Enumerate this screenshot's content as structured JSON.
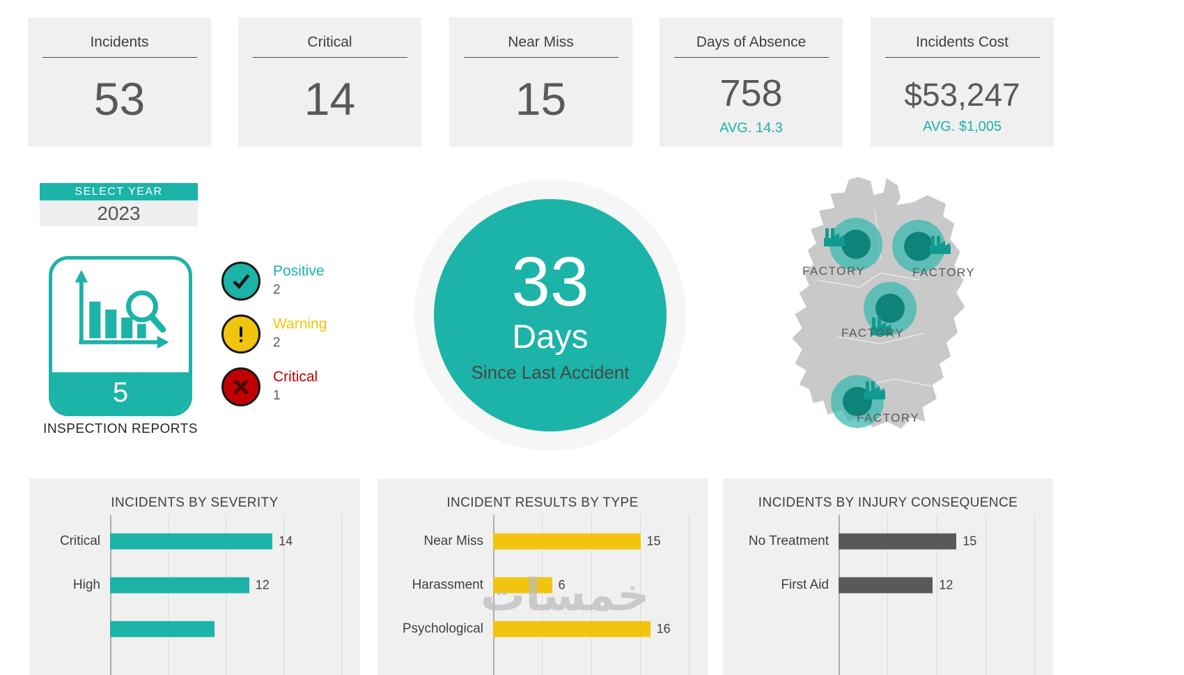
{
  "colors": {
    "teal": "#1CB3A8",
    "yellow": "#F1C40F",
    "red": "#C00000",
    "dark_gray": "#595959",
    "map_gray": "#C9C9C9"
  },
  "kpi_cards": [
    {
      "title": "Incidents",
      "value": "53",
      "avg": ""
    },
    {
      "title": "Critical",
      "value": "14",
      "avg": ""
    },
    {
      "title": "Near Miss",
      "value": "15",
      "avg": ""
    },
    {
      "title": "Days of Absence",
      "value": "758",
      "avg": "AVG. 14.3"
    },
    {
      "title": "Incidents Cost",
      "value": "$53,247",
      "avg": "AVG. $1,005"
    }
  ],
  "year_selector": {
    "label": "SELECT YEAR",
    "value": "2023"
  },
  "inspection_reports": {
    "count": "5",
    "caption": "INSPECTION REPORTS"
  },
  "status_legend": {
    "items": [
      {
        "name": "Positive",
        "count": "2",
        "color": "#1CB3A8"
      },
      {
        "name": "Warning",
        "count": "2",
        "color": "#F1C40F"
      },
      {
        "name": "Critical",
        "count": "1",
        "color": "#C00000"
      }
    ]
  },
  "accident_counter": {
    "value": "33",
    "unit": "Days",
    "caption": "Since Last Accident"
  },
  "factory_map": {
    "markers": [
      {
        "label": "FACTORY"
      },
      {
        "label": "FACTORY"
      },
      {
        "label": "FACTORY"
      },
      {
        "label": "FACTORY"
      }
    ]
  },
  "watermark": "خمسات",
  "chart_data": [
    {
      "type": "bar",
      "orientation": "horizontal",
      "title": "INCIDENTS BY SEVERITY",
      "color": "#1CB3A8",
      "axis_max": 20,
      "grid": true,
      "rows": [
        {
          "label": "Critical",
          "value": 14
        },
        {
          "label": "High",
          "value": 12
        },
        {
          "label": "",
          "value": 9,
          "value_visible": false
        }
      ]
    },
    {
      "type": "bar",
      "orientation": "horizontal",
      "title": "INCIDENT RESULTS BY TYPE",
      "color": "#F1C40F",
      "axis_max": 20,
      "grid": true,
      "rows": [
        {
          "label": "Near Miss",
          "value": 15
        },
        {
          "label": "Harassment",
          "value": 6
        },
        {
          "label": "Psychological",
          "value": 16
        }
      ]
    },
    {
      "type": "bar",
      "orientation": "horizontal",
      "title": "INCIDENTS BY INJURY CONSEQUENCE",
      "color": "#595959",
      "axis_max": 25,
      "grid": true,
      "rows": [
        {
          "label": "No Treatment",
          "value": 15
        },
        {
          "label": "First Aid",
          "value": 12
        }
      ]
    }
  ]
}
